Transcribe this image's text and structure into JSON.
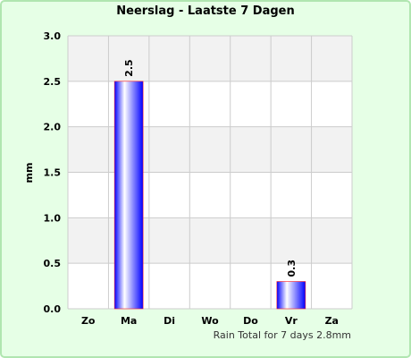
{
  "chart_data": {
    "type": "bar",
    "title": "Neerslag - Laatste 7 Dagen",
    "xlabel": "",
    "ylabel": "mm",
    "categories": [
      "Zo",
      "Ma",
      "Di",
      "Wo",
      "Do",
      "Vr",
      "Za"
    ],
    "values": [
      0,
      2.5,
      0,
      0,
      0,
      0.3,
      0
    ],
    "data_labels": [
      "",
      "2.5",
      "",
      "",
      "",
      "0.3",
      ""
    ],
    "ylim": [
      0,
      3.0
    ],
    "yticks": [
      "0.0",
      "0.5",
      "1.0",
      "1.5",
      "2.0",
      "2.5",
      "3.0"
    ],
    "grid": true,
    "legend": "none",
    "footnote": "Rain Total for 7 days 2.8mm"
  },
  "colors": {
    "page_background": "#e6ffe6",
    "page_border": "#b0e6b0",
    "plot_band_light": "#f2f2f2",
    "plot_band_white": "#ffffff",
    "bar_blue": "#0000ff",
    "bar_outline": "#ff2020"
  }
}
